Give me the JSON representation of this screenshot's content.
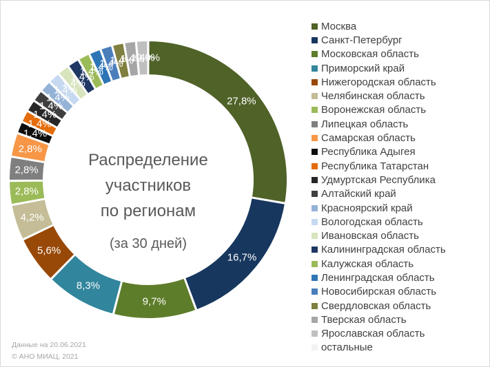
{
  "chart_data": {
    "type": "pie",
    "variant": "donut",
    "title_lines": [
      "Распределение",
      "участников",
      "по регионам"
    ],
    "subtitle": "(за 30 дней)",
    "legend_position": "right",
    "categories": [
      "Москва",
      "Санкт-Петербург",
      "Московская область",
      "Приморский край",
      "Нижегородская область",
      "Челябинская область",
      "Воронежская область",
      "Липецкая область",
      "Самарская область",
      "Республика Адыгея",
      "Республика Татарстан",
      "Удмуртская Республика",
      "Алтайский край",
      "Красноярский край",
      "Вологодская область",
      "Ивановская область",
      "Калининградская область",
      "Калужская область",
      "Ленинградская область",
      "Новосибирская область",
      "Свердловская область",
      "Тверская область",
      "Ярославская область",
      "остальные"
    ],
    "values": [
      27.8,
      16.7,
      9.7,
      8.3,
      5.6,
      4.2,
      2.8,
      2.8,
      2.8,
      1.4,
      1.4,
      1.4,
      1.4,
      1.4,
      1.4,
      1.4,
      1.4,
      1.4,
      1.4,
      1.4,
      1.4,
      1.4,
      1.4,
      0.0
    ],
    "data_labels": [
      "27,8%",
      "16,7%",
      "9,7%",
      "8,3%",
      "5,6%",
      "4,2%",
      "2,8%",
      "2,8%",
      "2,8%",
      "1,4%",
      "1,4%",
      "1,4%",
      "1,4%",
      "1,4%",
      "1,4%",
      "1,4%",
      "1,4%",
      "1,4%",
      "1,4%",
      "1,4%",
      "1,4%",
      "1,4%",
      "1,4%",
      "0,0%"
    ],
    "colors": [
      "#4f6228",
      "#17375e",
      "#5e7d2a",
      "#31859c",
      "#984807",
      "#c4bd97",
      "#9bbb59",
      "#7f7f7f",
      "#f79646",
      "#0d0d0d",
      "#e46c0a",
      "#262626",
      "#3f3f3f",
      "#95b3d7",
      "#c6d9f1",
      "#d7e4bd",
      "#1f3864",
      "#9bbb59",
      "#2e75b6",
      "#4a7ebb",
      "#7f7f3f",
      "#a6a6a6",
      "#bfbfbf",
      "#f2f2f2"
    ]
  },
  "footer": {
    "line1": "Данные на 20.06.2021",
    "line2": "© АНО МИАЦ, 2021"
  }
}
